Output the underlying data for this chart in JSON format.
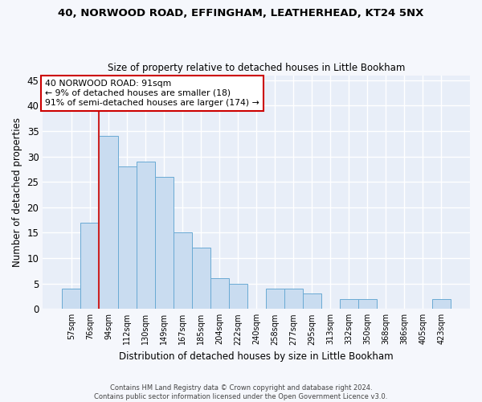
{
  "title1": "40, NORWOOD ROAD, EFFINGHAM, LEATHERHEAD, KT24 5NX",
  "title2": "Size of property relative to detached houses in Little Bookham",
  "xlabel": "Distribution of detached houses by size in Little Bookham",
  "ylabel": "Number of detached properties",
  "categories": [
    "57sqm",
    "76sqm",
    "94sqm",
    "112sqm",
    "130sqm",
    "149sqm",
    "167sqm",
    "185sqm",
    "204sqm",
    "222sqm",
    "240sqm",
    "258sqm",
    "277sqm",
    "295sqm",
    "313sqm",
    "332sqm",
    "350sqm",
    "368sqm",
    "386sqm",
    "405sqm",
    "423sqm"
  ],
  "values": [
    4,
    17,
    34,
    28,
    29,
    26,
    15,
    12,
    6,
    5,
    0,
    4,
    4,
    3,
    0,
    2,
    2,
    0,
    0,
    0,
    2
  ],
  "bar_color": "#c9dcf0",
  "bar_edge_color": "#6aaad4",
  "red_line_x": 1.5,
  "annotation_line1": "40 NORWOOD ROAD: 91sqm",
  "annotation_line2": "← 9% of detached houses are smaller (18)",
  "annotation_line3": "91% of semi-detached houses are larger (174) →",
  "annotation_box_facecolor": "#ffffff",
  "annotation_box_edgecolor": "#cc0000",
  "ylim": [
    0,
    46
  ],
  "yticks": [
    0,
    5,
    10,
    15,
    20,
    25,
    30,
    35,
    40,
    45
  ],
  "plot_bg_color": "#e8eef8",
  "fig_bg_color": "#f5f7fc",
  "grid_color": "#ffffff",
  "footer1": "Contains HM Land Registry data © Crown copyright and database right 2024.",
  "footer2": "Contains public sector information licensed under the Open Government Licence v3.0."
}
